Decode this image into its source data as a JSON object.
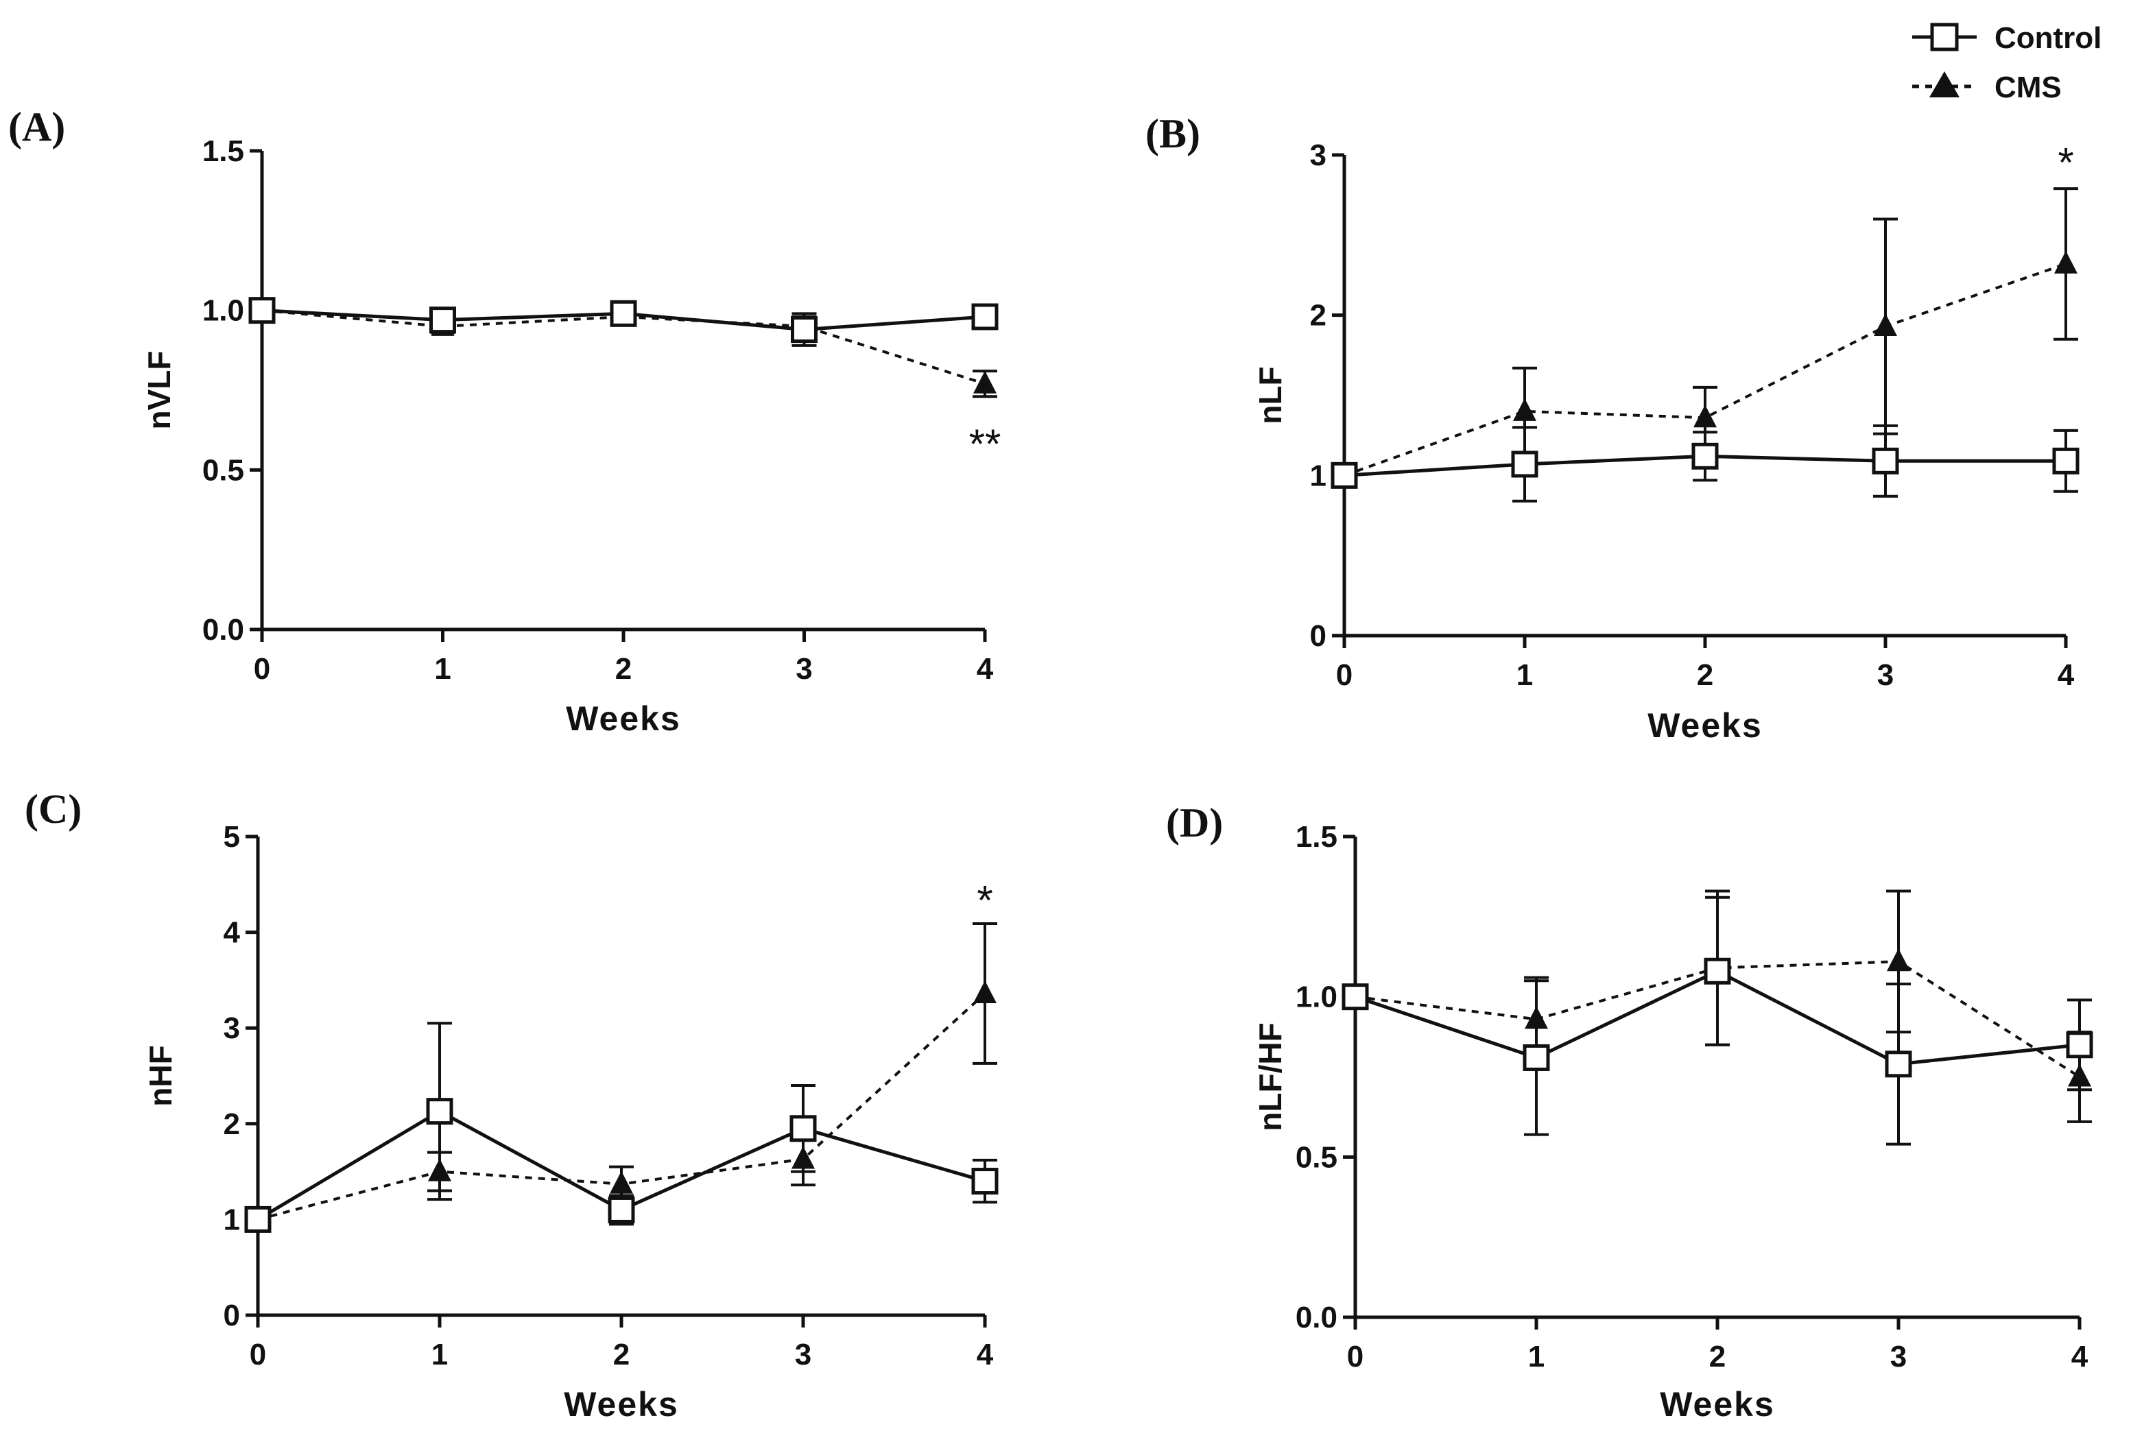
{
  "legend": {
    "control_label": "Control",
    "cms_label": "CMS",
    "control_color": "#111111",
    "cms_color": "#111111"
  },
  "chart_data": [
    {
      "panel": "(A)",
      "type": "line",
      "xlabel": "Weeks",
      "ylabel": "nVLF",
      "x": [
        0,
        1,
        2,
        3,
        4
      ],
      "xticks": [
        "0",
        "1",
        "2",
        "3",
        "4"
      ],
      "ylim": [
        0,
        1.5
      ],
      "yticks": [
        "0.0",
        "0.5",
        "1.0",
        "1.5"
      ],
      "ytick_values": [
        0,
        0.5,
        1.0,
        1.5
      ],
      "series": [
        {
          "name": "Control",
          "marker": "square",
          "line": "solid",
          "values": [
            1.0,
            0.97,
            0.99,
            0.94,
            0.98
          ],
          "errors": [
            0.0,
            0.02,
            0.02,
            0.05,
            0.02
          ]
        },
        {
          "name": "CMS",
          "marker": "triangle",
          "line": "dashed",
          "values": [
            1.0,
            0.95,
            0.98,
            0.95,
            0.77
          ],
          "errors": [
            0.0,
            0.02,
            0.02,
            0.03,
            0.04
          ]
        }
      ],
      "annotations": [
        {
          "text": "**",
          "x": 4,
          "y": 0.58
        }
      ]
    },
    {
      "panel": "(B)",
      "type": "line",
      "xlabel": "Weeks",
      "ylabel": "nLF",
      "x": [
        0,
        1,
        2,
        3,
        4
      ],
      "xticks": [
        "0",
        "1",
        "2",
        "3",
        "4"
      ],
      "ylim": [
        0,
        3
      ],
      "yticks": [
        "0",
        "1",
        "2",
        "3"
      ],
      "ytick_values": [
        0,
        1,
        2,
        3
      ],
      "series": [
        {
          "name": "Control",
          "marker": "square",
          "line": "solid",
          "values": [
            1.0,
            1.07,
            1.12,
            1.09,
            1.09
          ],
          "errors": [
            0.0,
            0.23,
            0.15,
            0.22,
            0.19
          ]
        },
        {
          "name": "CMS",
          "marker": "triangle",
          "line": "dashed",
          "values": [
            1.0,
            1.4,
            1.36,
            1.93,
            2.32
          ],
          "errors": [
            0.0,
            0.27,
            0.19,
            0.67,
            0.47
          ]
        }
      ],
      "annotations": [
        {
          "text": "*",
          "x": 4,
          "y": 2.95
        }
      ]
    },
    {
      "panel": "(C)",
      "type": "line",
      "xlabel": "Weeks",
      "ylabel": "nHF",
      "x": [
        0,
        1,
        2,
        3,
        4
      ],
      "xticks": [
        "0",
        "1",
        "2",
        "3",
        "4"
      ],
      "ylim": [
        0,
        5
      ],
      "yticks": [
        "0",
        "1",
        "2",
        "3",
        "4",
        "5"
      ],
      "ytick_values": [
        0,
        1,
        2,
        3,
        4,
        5
      ],
      "series": [
        {
          "name": "Control",
          "marker": "square",
          "line": "solid",
          "values": [
            1.0,
            2.13,
            1.1,
            1.95,
            1.4
          ],
          "errors": [
            0.0,
            0.92,
            0.15,
            0.45,
            0.22
          ]
        },
        {
          "name": "CMS",
          "marker": "triangle",
          "line": "dashed",
          "values": [
            1.0,
            1.5,
            1.37,
            1.63,
            3.36
          ],
          "errors": [
            0.0,
            0.2,
            0.18,
            0.27,
            0.73
          ]
        }
      ],
      "annotations": [
        {
          "text": "*",
          "x": 4,
          "y": 4.33
        }
      ]
    },
    {
      "panel": "(D)",
      "type": "line",
      "xlabel": "Weeks",
      "ylabel": "nLF/HF",
      "x": [
        0,
        1,
        2,
        3,
        4
      ],
      "xticks": [
        "0",
        "1",
        "2",
        "3",
        "4"
      ],
      "ylim": [
        0,
        1.5
      ],
      "yticks": [
        "0.0",
        "0.5",
        "1.0",
        "1.5"
      ],
      "ytick_values": [
        0,
        0.5,
        1.0,
        1.5
      ],
      "series": [
        {
          "name": "Control",
          "marker": "square",
          "line": "solid",
          "values": [
            1.0,
            0.81,
            1.08,
            0.79,
            0.85
          ],
          "errors": [
            0.0,
            0.24,
            0.23,
            0.25,
            0.14
          ]
        },
        {
          "name": "CMS",
          "marker": "triangle",
          "line": "dashed",
          "values": [
            1.0,
            0.93,
            1.09,
            1.11,
            0.75
          ],
          "errors": [
            0.0,
            0.13,
            0.24,
            0.22,
            0.14
          ]
        }
      ],
      "annotations": []
    }
  ]
}
